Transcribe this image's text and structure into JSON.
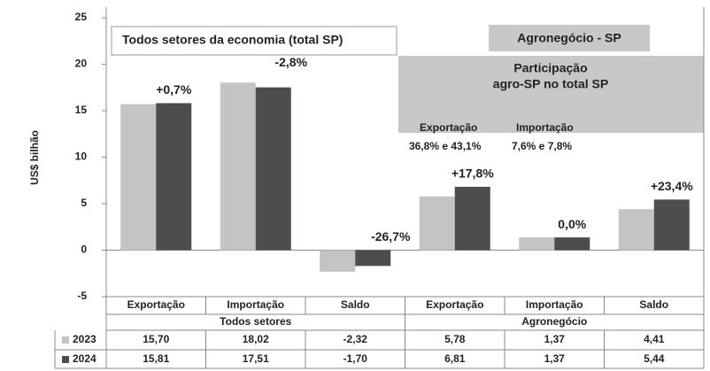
{
  "chart_data": {
    "type": "bar",
    "y_label": "US$ bilhão",
    "categories": [
      "Exportação",
      "Importação",
      "Saldo",
      "Exportação",
      "Importação",
      "Saldo"
    ],
    "groups": [
      "Todos setores",
      "Agronegócio"
    ],
    "series": [
      {
        "name": "2023",
        "color": "#c4c4c4",
        "values": [
          15.7,
          18.02,
          -2.32,
          5.78,
          1.37,
          4.41
        ],
        "value_labels": [
          "15,70",
          "18,02",
          "-2,32",
          "5,78",
          "1,37",
          "4,41"
        ]
      },
      {
        "name": "2024",
        "color": "#4d4d4d",
        "values": [
          15.81,
          17.51,
          -1.7,
          6.81,
          1.37,
          5.44
        ],
        "value_labels": [
          "15,81",
          "17,51",
          "-1,70",
          "6,81",
          "1,37",
          "5,44"
        ]
      }
    ],
    "ylim": [
      -5,
      25
    ],
    "yticks": [
      -5,
      0,
      5,
      10,
      15,
      20,
      25
    ],
    "annotations": [
      "+0,7%",
      "-2,8%",
      "-26,7%",
      "+17,8%",
      "0,0%",
      "+23,4%"
    ],
    "box_total": "Todos setores da economia (total SP)",
    "box_agro": "Agronegócio - SP",
    "participation": {
      "title_lines": [
        "Participação",
        "agro-SP no total SP"
      ],
      "export_label": "Exportação",
      "export_values": "36,8% e 43,1%",
      "import_label": "Importação",
      "import_values": "7,6% e 7,8%"
    }
  }
}
